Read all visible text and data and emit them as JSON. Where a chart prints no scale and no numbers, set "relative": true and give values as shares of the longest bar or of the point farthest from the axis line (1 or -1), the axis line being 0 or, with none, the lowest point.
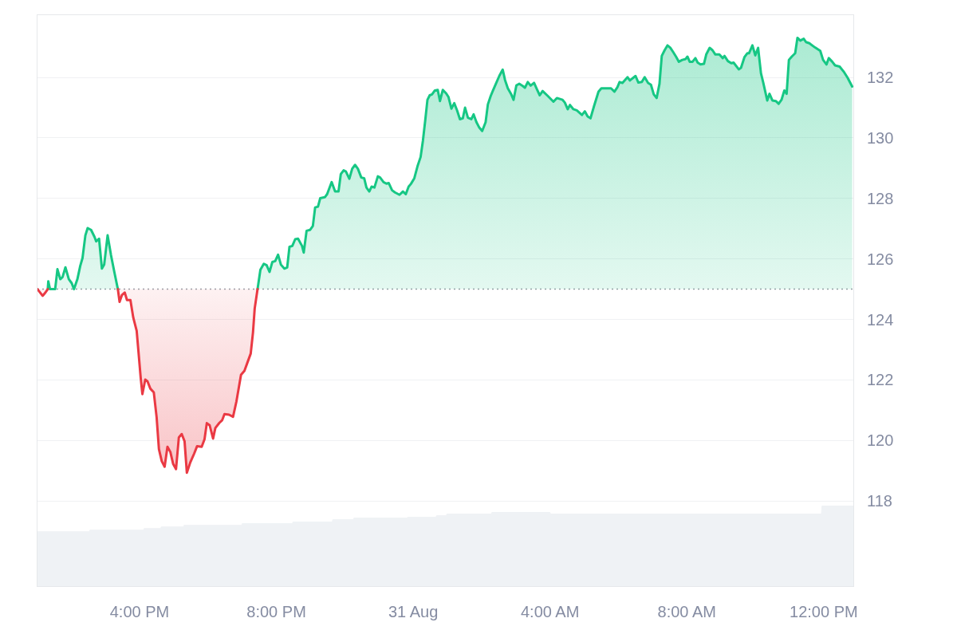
{
  "chart_data": [
    {
      "type": "area",
      "series": [
        {
          "color": "#16c784",
          "x": [
            "--08-30T13:19",
            "--08-30T13:20",
            "--08-30T13:23",
            "--08-30T13:32",
            "--08-30T13:36",
            "--08-30T13:41",
            "--08-30T13:45",
            "--08-30T13:50",
            "--08-30T13:56",
            "--08-30T14:01",
            "--08-30T14:05",
            "--08-30T14:11",
            "--08-30T14:16",
            "--08-30T14:20",
            "--08-30T14:25",
            "--08-30T14:29",
            "--08-30T14:35",
            "--08-30T14:41",
            "--08-30T14:44",
            "--08-30T14:49",
            "--08-30T14:54",
            "--08-30T14:58",
            "--08-30T15:04",
            "--08-30T15:10",
            "--08-30T15:16",
            "--08-30T15:22",
            "--08-30T15:25",
            "--08-30T19:27",
            "--08-30T19:32",
            "--08-30T19:38",
            "--08-30T19:43",
            "--08-30T19:48",
            "--08-30T19:53",
            "--08-30T19:58",
            "--08-30T20:03",
            "--08-30T20:08",
            "--08-30T20:14",
            "--08-30T20:19",
            "--08-30T20:23",
            "--08-30T20:28",
            "--08-30T20:33",
            "--08-30T20:38",
            "--08-30T20:45",
            "--08-30T20:48",
            "--08-30T20:53",
            "--08-30T20:59",
            "--08-30T21:04",
            "--08-30T21:08",
            "--08-30T21:13",
            "--08-30T21:17",
            "--08-30T21:25",
            "--08-30T21:29",
            "--08-30T21:37",
            "--08-30T21:43",
            "--08-30T21:49",
            "--08-30T21:53",
            "--08-30T21:58",
            "--08-30T22:02",
            "--08-30T22:08",
            "--08-30T22:13",
            "--08-30T22:18",
            "--08-30T22:23",
            "--08-30T22:29",
            "--08-30T22:34",
            "--08-30T22:38",
            "--08-30T22:43",
            "--08-30T22:47",
            "--08-30T22:52",
            "--08-30T22:58",
            "--08-30T23:02",
            "--08-30T23:08",
            "--08-30T23:13",
            "--08-30T23:17",
            "--08-30T23:23",
            "--08-30T23:28",
            "--08-30T23:36",
            "--08-30T23:42",
            "--08-30T23:47",
            "--08-30T23:52",
            "--08-30T23:56",
            "--08-31T00:02",
            "--08-31T00:08",
            "--08-31T00:13",
            "--08-31T00:17",
            "--08-31T00:21",
            "--08-31T00:25",
            "--08-31T00:29",
            "--08-31T00:33",
            "--08-31T00:38",
            "--08-31T00:43",
            "--08-31T00:47",
            "--08-31T00:52",
            "--08-31T00:58",
            "--08-31T01:02",
            "--08-31T01:07",
            "--08-31T01:12",
            "--08-31T01:17",
            "--08-31T01:22",
            "--08-31T01:27",
            "--08-31T01:31",
            "--08-31T01:36",
            "--08-31T01:42",
            "--08-31T01:46",
            "--08-31T01:51",
            "--08-31T01:56",
            "--08-31T02:01",
            "--08-31T02:07",
            "--08-31T02:11",
            "--08-31T02:16",
            "--08-31T02:20",
            "--08-31T02:25",
            "--08-31T02:31",
            "--08-31T02:37",
            "--08-31T02:41",
            "--08-31T02:46",
            "--08-31T02:52",
            "--08-31T02:56",
            "--08-31T03:01",
            "--08-31T03:06",
            "--08-31T03:12",
            "--08-31T03:16",
            "--08-31T03:21",
            "--08-31T03:26",
            "--08-31T03:32",
            "--08-31T03:37",
            "--08-31T03:42",
            "--08-31T03:47",
            "--08-31T03:56",
            "--08-31T04:06",
            "--08-31T04:12",
            "--08-31T04:22",
            "--08-31T04:26",
            "--08-31T04:31",
            "--08-31T04:35",
            "--08-31T04:41",
            "--08-31T04:47",
            "--08-31T04:56",
            "--08-31T05:01",
            "--08-31T05:06",
            "--08-31T05:11",
            "--08-31T05:17",
            "--08-31T05:25",
            "--08-31T05:30",
            "--08-31T05:41",
            "--08-31T05:47",
            "--08-31T05:53",
            "--08-31T05:58",
            "--08-31T06:02",
            "--08-31T06:07",
            "--08-31T06:16",
            "--08-31T06:20",
            "--08-31T06:30",
            "--08-31T06:35",
            "--08-31T06:41",
            "--08-31T06:46",
            "--08-31T06:52",
            "--08-31T06:57",
            "--08-31T07:02",
            "--08-31T07:07",
            "--08-31T07:12",
            "--08-31T07:16",
            "--08-31T07:21",
            "--08-31T07:26",
            "--08-31T07:31",
            "--08-31T07:36",
            "--08-31T07:41",
            "--08-31T07:46",
            "--08-31T07:52",
            "--08-31T07:58",
            "--08-31T08:01",
            "--08-31T08:05",
            "--08-31T08:10",
            "--08-31T08:15",
            "--08-31T08:19",
            "--08-31T08:24",
            "--08-31T08:30",
            "--08-31T08:34",
            "--08-31T08:40",
            "--08-31T08:45",
            "--08-31T08:50",
            "--08-31T08:57",
            "--08-31T09:03",
            "--08-31T09:06",
            "--08-31T09:12",
            "--08-31T09:18",
            "--08-31T09:22",
            "--08-31T09:31",
            "--08-31T09:35",
            "--08-31T09:41",
            "--08-31T09:46",
            "--08-31T09:49",
            "--08-31T09:55",
            "--08-31T10:00",
            "--08-31T10:05",
            "--08-31T10:10",
            "--08-31T10:14",
            "--08-31T10:21",
            "--08-31T10:25",
            "--08-31T10:30",
            "--08-31T10:36",
            "--08-31T10:41",
            "--08-31T10:46",
            "--08-31T10:51",
            "--08-31T10:55",
            "--08-31T10:59",
            "--08-31T11:04",
            "--08-31T11:10",
            "--08-31T11:14",
            "--08-31T11:19",
            "--08-31T11:25",
            "--08-31T11:29",
            "--08-31T11:35",
            "--08-31T11:45",
            "--08-31T11:54",
            "--08-31T11:59",
            "--08-31T12:05",
            "--08-31T12:09",
            "--08-31T12:15",
            "--08-31T12:20",
            "--08-31T12:28",
            "--08-31T12:36",
            "--08-31T12:42",
            "--08-31T12:50"
          ],
          "values": [
            125.0,
            125.26,
            125.0,
            125.0,
            125.66,
            125.33,
            125.4,
            125.72,
            125.33,
            125.2,
            125.0,
            125.33,
            125.77,
            126.03,
            126.78,
            127.02,
            126.96,
            126.73,
            126.58,
            126.67,
            125.68,
            125.81,
            126.78,
            126.12,
            125.55,
            125.0,
            null,
            125.0,
            125.64,
            125.84,
            125.79,
            125.57,
            125.9,
            125.93,
            126.14,
            125.81,
            125.68,
            125.72,
            126.4,
            126.43,
            126.65,
            126.67,
            126.43,
            126.21,
            126.93,
            126.96,
            127.09,
            127.7,
            127.73,
            128.01,
            128.04,
            128.14,
            128.54,
            128.23,
            128.23,
            128.8,
            128.93,
            128.89,
            128.65,
            128.98,
            129.11,
            128.98,
            128.69,
            128.67,
            128.36,
            128.23,
            128.39,
            128.36,
            128.73,
            128.69,
            128.54,
            128.49,
            128.51,
            128.27,
            128.2,
            128.12,
            128.23,
            128.14,
            128.39,
            128.48,
            128.67,
            129.09,
            129.37,
            129.9,
            130.56,
            131.26,
            131.41,
            131.44,
            131.57,
            131.59,
            131.22,
            131.59,
            131.47,
            131.35,
            130.97,
            131.15,
            130.91,
            130.62,
            130.65,
            131.0,
            130.67,
            130.62,
            130.78,
            130.52,
            130.34,
            130.23,
            130.52,
            131.11,
            131.39,
            131.57,
            131.79,
            132.05,
            132.26,
            131.92,
            131.64,
            131.44,
            131.26,
            131.74,
            131.79,
            131.72,
            131.66,
            131.85,
            131.73,
            131.82,
            131.61,
            131.41,
            131.55,
            131.39,
            131.2,
            131.32,
            131.26,
            131.17,
            130.95,
            131.09,
            130.95,
            130.91,
            130.76,
            130.88,
            130.71,
            130.65,
            131.04,
            131.53,
            131.64,
            131.64,
            131.64,
            131.53,
            131.67,
            131.85,
            131.82,
            132.01,
            131.9,
            132.05,
            131.83,
            131.85,
            132.01,
            131.82,
            131.76,
            131.44,
            131.32,
            131.79,
            132.71,
            132.9,
            133.06,
            132.98,
            132.84,
            132.69,
            132.52,
            132.58,
            132.61,
            132.69,
            132.52,
            132.52,
            132.64,
            132.49,
            132.43,
            132.45,
            132.76,
            132.98,
            132.9,
            132.76,
            132.76,
            132.64,
            132.71,
            132.54,
            132.47,
            132.49,
            132.27,
            132.32,
            132.67,
            132.8,
            132.8,
            133.06,
            132.73,
            132.98,
            132.14,
            131.83,
            131.24,
            131.46,
            131.24,
            131.22,
            131.13,
            131.26,
            131.57,
            131.46,
            132.58,
            132.69,
            132.8,
            133.31,
            133.22,
            133.28,
            133.17,
            133.13,
            132.99,
            132.88,
            132.58,
            132.43,
            132.64,
            132.52,
            132.4,
            132.36,
            132.17,
            131.99,
            131.7
          ]
        },
        {
          "color": "#ea3943",
          "x": [
            "--08-30T13:01",
            "--08-30T13:10",
            "--08-30T13:15",
            "--08-30T13:19",
            "--08-30T13:20",
            "--08-30T15:22",
            "--08-30T15:25",
            "--08-30T15:29",
            "--08-30T15:34",
            "--08-30T15:38",
            "--08-30T15:44",
            "--08-30T15:49",
            "--08-30T15:55",
            "--08-30T15:58",
            "--08-30T16:02",
            "--08-30T16:05",
            "--08-30T16:10",
            "--08-30T16:14",
            "--08-30T16:19",
            "--08-30T16:25",
            "--08-30T16:30",
            "--08-30T16:34",
            "--08-30T16:39",
            "--08-30T16:44",
            "--08-30T16:49",
            "--08-30T16:54",
            "--08-30T16:59",
            "--08-30T17:04",
            "--08-30T17:09",
            "--08-30T17:14",
            "--08-30T17:19",
            "--08-30T17:23",
            "--08-30T17:29",
            "--08-30T17:36",
            "--08-30T17:41",
            "--08-30T17:49",
            "--08-30T17:54",
            "--08-30T17:58",
            "--08-30T18:03",
            "--08-30T18:09",
            "--08-30T18:13",
            "--08-30T18:20",
            "--08-30T18:25",
            "--08-30T18:29",
            "--08-30T18:37",
            "--08-30T18:44",
            "--08-30T18:50",
            "--08-30T18:58",
            "--08-30T19:04",
            "--08-30T19:09",
            "--08-30T19:15",
            "--08-30T19:19",
            "--08-30T19:22",
            "--08-30T19:27"
          ],
          "values": [
            125.0,
            124.78,
            124.89,
            125.0,
            null,
            125.0,
            124.58,
            124.8,
            124.89,
            124.64,
            124.64,
            124.06,
            123.62,
            122.96,
            122.08,
            121.53,
            122.01,
            121.95,
            121.71,
            121.59,
            120.76,
            119.71,
            119.31,
            119.13,
            119.79,
            119.62,
            119.22,
            119.05,
            120.1,
            120.21,
            119.97,
            118.93,
            119.27,
            119.57,
            119.81,
            119.79,
            120.04,
            120.57,
            120.5,
            120.06,
            120.41,
            120.58,
            120.67,
            120.87,
            120.85,
            120.78,
            121.29,
            122.17,
            122.3,
            122.56,
            122.87,
            123.57,
            124.36,
            125.0
          ]
        }
      ],
      "xlim": [
        "--08-30T13:01",
        "--08-31T12:52"
      ],
      "xticks": [
        {
          "value": "--08-30T16:00",
          "label": "4:00 PM"
        },
        {
          "value": "--08-30T20:00",
          "label": "8:00 PM"
        },
        {
          "value": "--08-31T00:00",
          "label": "31 Aug"
        },
        {
          "value": "--08-31T04:00",
          "label": "4:00 AM"
        },
        {
          "value": "--08-31T08:00",
          "label": "8:00 AM"
        },
        {
          "value": "--08-31T12:00",
          "label": "12:00 PM"
        }
      ],
      "ylim": [
        115.18,
        134.06
      ],
      "yticks": [
        118,
        120,
        122,
        124,
        126,
        128,
        130,
        132
      ],
      "grid": "y",
      "ref_lines": [
        {
          "axis": "y",
          "value": 125,
          "color": "#9a9ea6",
          "line_style": "dotted"
        }
      ]
    },
    {
      "type": "area",
      "relative": true,
      "color": "#eff2f5",
      "x": [
        "--08-30T13:01",
        "--08-30T14:32",
        "--08-30T14:33",
        "--08-30T16:07",
        "--08-30T16:08",
        "--08-30T16:37",
        "--08-30T16:38",
        "--08-30T17:17",
        "--08-30T17:18",
        "--08-30T18:59",
        "--08-30T19:00",
        "--08-30T20:28",
        "--08-30T20:29",
        "--08-30T21:38",
        "--08-30T21:39",
        "--08-30T22:15",
        "--08-30T22:16",
        "--08-30T23:49",
        "--08-30T23:50",
        "--08-31T00:40",
        "--08-31T00:41",
        "--08-31T00:58",
        "--08-31T00:59",
        "--08-31T02:17",
        "--08-31T02:18",
        "--08-31T04:00",
        "--08-31T04:01",
        "--08-31T11:56",
        "--08-31T11:57",
        "--08-31T12:52"
      ],
      "values": [
        0.68,
        0.68,
        0.7,
        0.7,
        0.72,
        0.72,
        0.74,
        0.74,
        0.76,
        0.76,
        0.78,
        0.78,
        0.8,
        0.8,
        0.83,
        0.83,
        0.85,
        0.85,
        0.86,
        0.86,
        0.88,
        0.88,
        0.9,
        0.9,
        0.92,
        0.92,
        0.9,
        0.9,
        1.0,
        1.0
      ],
      "xlim": [
        "--08-30T13:01",
        "--08-31T12:52"
      ],
      "tick_labels": false
    }
  ]
}
